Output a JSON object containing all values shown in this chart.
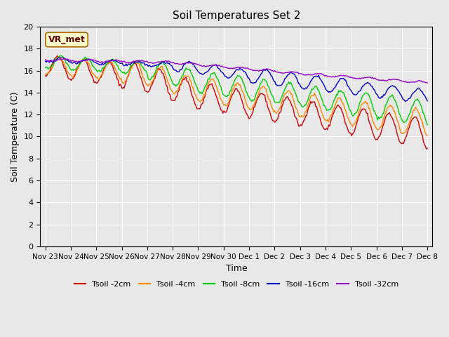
{
  "title": "Soil Temperatures Set 2",
  "xlabel": "Time",
  "ylabel": "Soil Temperature (C)",
  "ylim": [
    0,
    20
  ],
  "yticks": [
    0,
    2,
    4,
    6,
    8,
    10,
    12,
    14,
    16,
    18,
    20
  ],
  "xtick_labels": [
    "Nov 23",
    "Nov 24",
    "Nov 25",
    "Nov 26",
    "Nov 27",
    "Nov 28",
    "Nov 29",
    "Nov 30",
    "Dec 1",
    "Dec 2",
    "Dec 3",
    "Dec 4",
    "Dec 5",
    "Dec 6",
    "Dec 7",
    "Dec 8"
  ],
  "series_colors": [
    "#cc0000",
    "#ff8800",
    "#00cc00",
    "#0000cc",
    "#9900cc"
  ],
  "series_labels": [
    "Tsoil -2cm",
    "Tsoil -4cm",
    "Tsoil -8cm",
    "Tsoil -16cm",
    "Tsoil -32cm"
  ],
  "annotation_text": "VR_met",
  "bg_color": "#e8e8e8"
}
